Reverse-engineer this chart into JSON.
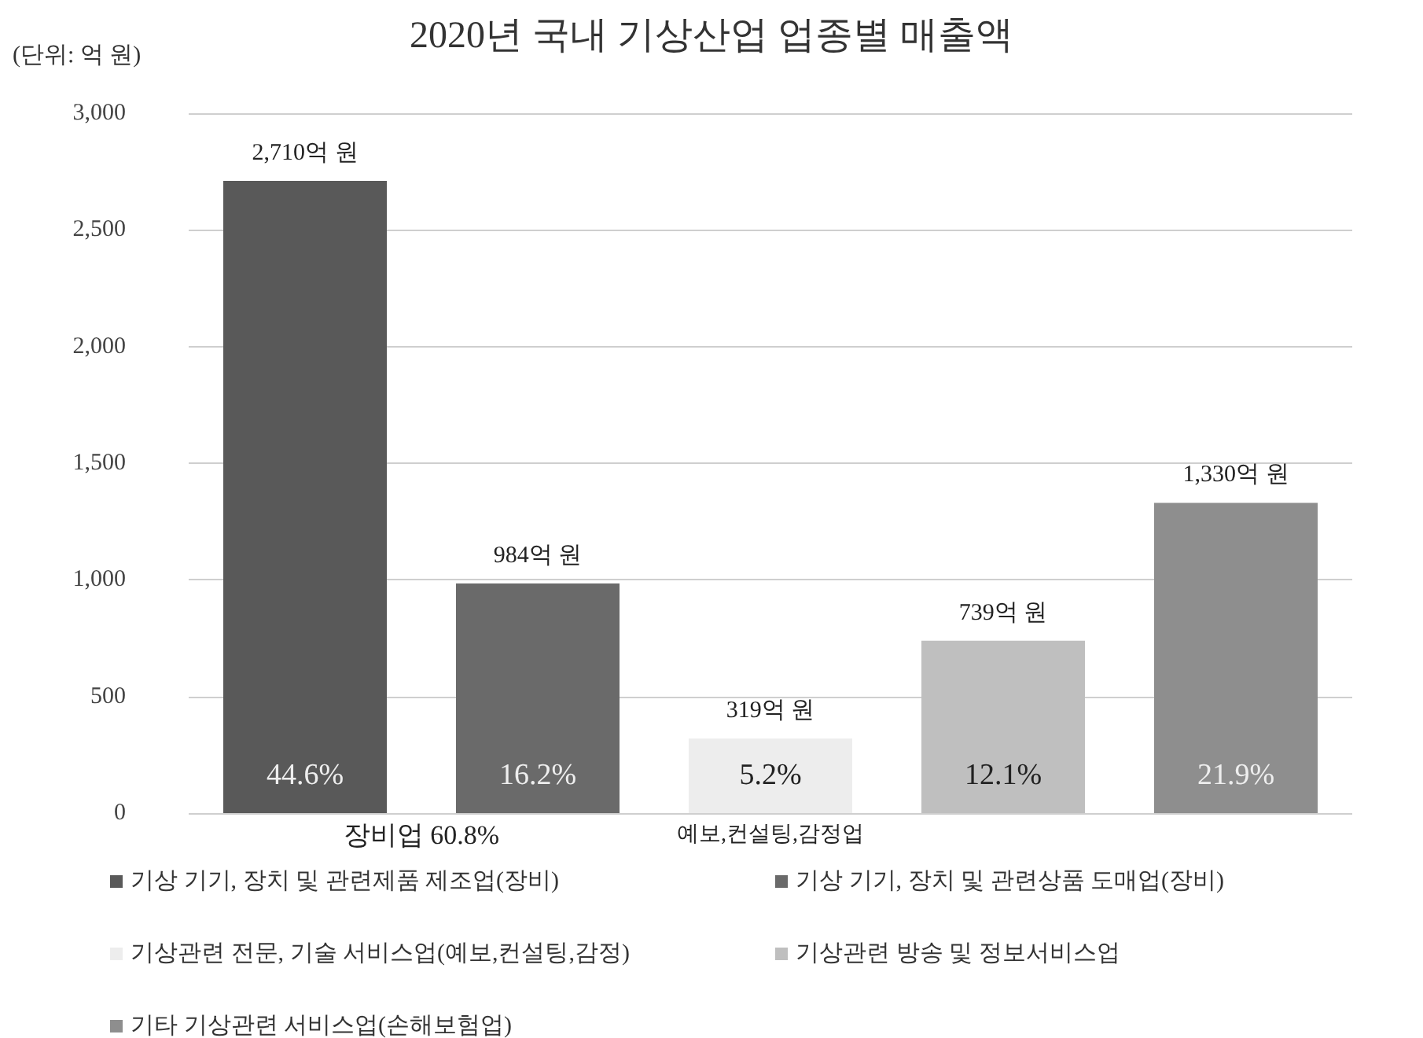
{
  "chart_data": {
    "type": "bar",
    "title": "2020년 국내 기상산업 업종별 매출액",
    "annotations": [
      "(단위: 억 원)",
      "44.6%",
      "16.2%",
      "5.2%",
      "12.1%",
      "21.9%",
      "장비업 60.8%",
      "예보,컨설팅,감정업"
    ],
    "categories": [
      null,
      null,
      null,
      null,
      null
    ],
    "series": [
      {
        "name": "기상 기기, 장치 및 관련제품 제조업(장비)",
        "color": "#595959",
        "values": [
          2710,
          null,
          null,
          null,
          null
        ],
        "value_labels": [
          "2,710억 원",
          null,
          null,
          null,
          null
        ]
      },
      {
        "name": "기상 기기, 장치 및 관련상품 도매업(장비)",
        "color": "#6a6a6a",
        "values": [
          null,
          984,
          null,
          null,
          null
        ],
        "value_labels": [
          null,
          "984억 원",
          null,
          null,
          null
        ]
      },
      {
        "name": "기상관련 전문, 기술 서비스업(예보,컨설팅,감정)",
        "color": "#ededed",
        "values": [
          null,
          null,
          319,
          null,
          null
        ],
        "value_labels": [
          null,
          null,
          "319억 원",
          null,
          null
        ]
      },
      {
        "name": "기상관련 방송 및 정보서비스업",
        "color": "#bfbfbf",
        "values": [
          null,
          null,
          null,
          739,
          null
        ],
        "value_labels": [
          null,
          null,
          null,
          "739억 원",
          null
        ]
      },
      {
        "name": "기타 기상관련 서비스업(손해보험업)",
        "color": "#8e8e8e",
        "values": [
          null,
          null,
          null,
          null,
          1330
        ],
        "value_labels": [
          null,
          null,
          null,
          null,
          "1,330억 원"
        ]
      }
    ],
    "ylim": [
      0,
      3000
    ],
    "yticks": [
      0,
      500,
      {
        "value": 1000,
        "label": "1,000"
      },
      {
        "value": 1500,
        "label": "1,500"
      },
      {
        "value": 2000,
        "label": "2,000"
      },
      {
        "value": 2500,
        "label": "2,500"
      },
      {
        "value": 3000,
        "label": "3,000"
      }
    ],
    "grid": "y",
    "legend": "bottom"
  }
}
